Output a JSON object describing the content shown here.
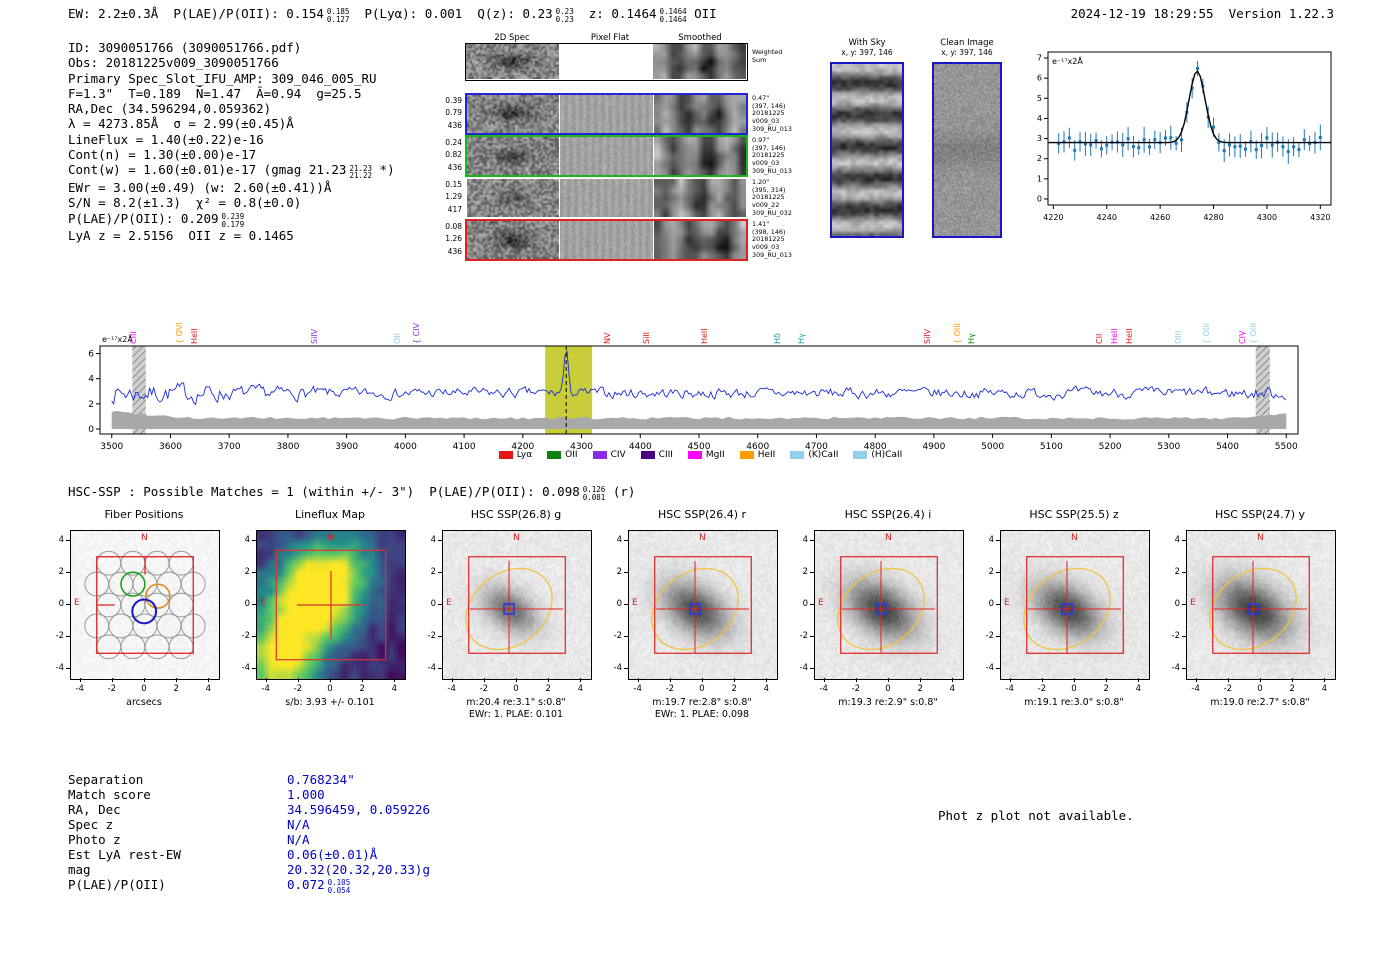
{
  "meta": {
    "timestamp": "2024-12-19 18:29:55",
    "version": "Version 1.22.3"
  },
  "header_parts": [
    {
      "t": "EW: 2.2±0.3Å  P(LAE)/P(OII): 0.154"
    },
    {
      "sup": "0.185",
      "sub": "0.127"
    },
    {
      "t": "  P(Lyα): 0.001  Q(z): 0.23"
    },
    {
      "sup": "0.23",
      "sub": "0.23"
    },
    {
      "t": "  z: 0.1464"
    },
    {
      "sup": "0.1464",
      "sub": "0.1464"
    },
    {
      "t": " OII"
    }
  ],
  "info_lines": [
    {
      "t": "ID: 3090051766 (3090051766.pdf)"
    },
    {
      "t": "Obs: 20181225v009_3090051766"
    },
    {
      "t": "Primary Spec_Slot_IFU_AMP: 309_046_005_RU"
    },
    {
      "t": "F=1.3\"  T=0.189  N̄=1.47  Ā=0.94  g=25.5"
    },
    {
      "t": "RA,Dec (34.596294,0.059362)"
    },
    {
      "t": "λ = 4273.85Å  σ = 2.99(±0.45)Å"
    },
    {
      "t": "LineFlux = 1.40(±0.22)e-16"
    },
    {
      "t": "Cont(n) = 1.30(±0.00)e-17"
    },
    {
      "pre": "Cont(w) = 1.60(±0.01)e-17 (gmag 21.23",
      "sup": "21.23",
      "sub": "21.22",
      "post": " *)"
    },
    {
      "t": "EWr = 3.00(±0.49) (w: 2.60(±0.41))Å"
    },
    {
      "t": "S/N = 8.2(±1.3)  χ² = 0.8(±0.0)"
    },
    {
      "pre": "P(LAE)/P(OII): 0.209",
      "sup": "0.239",
      "sub": "0.179"
    },
    {
      "t": "LyA z = 2.5156  OII z = 0.1465"
    }
  ],
  "spec2d": {
    "col_titles": [
      "2D Spec",
      "Pixel Flat",
      "Smoothed"
    ],
    "weighted_label": [
      "Weighted",
      "Sum"
    ],
    "rows": [
      {
        "left": [
          "0.39",
          "0.79",
          "436"
        ],
        "right": [
          "0.47\"",
          "(397, 146)",
          "20181225",
          "v009_03",
          "309_RU_013"
        ],
        "border": "#2424d8"
      },
      {
        "left": [
          "0.24",
          "0.82",
          "436"
        ],
        "right": [
          "0.97\"",
          "(397, 146)",
          "20181225",
          "v009_03",
          "309_RU_013"
        ],
        "border": "#18b818"
      },
      {
        "left": [
          "0.15",
          "1.29",
          "417"
        ],
        "right": [
          "1.20\"",
          "(395, 314)",
          "20181225",
          "v009_22",
          "309_RU_032"
        ],
        "border": "none"
      },
      {
        "left": [
          "0.08",
          "1.26",
          "436"
        ],
        "right": [
          "1.41\"",
          "(398, 146)",
          "20181225",
          "v009_03",
          "309_RU_013"
        ],
        "border": "#e02020"
      }
    ]
  },
  "sky_panels": [
    {
      "title": "With Sky",
      "subtitle": "x, y: 397, 146"
    },
    {
      "title": "Clean Image",
      "subtitle": "x, y: 397, 146"
    }
  ],
  "chart_data": [
    {
      "id": "emission-line-fit-zoom",
      "type": "scatter",
      "annotation": "e⁻¹⁷x2Å",
      "x_range": [
        4218,
        4324
      ],
      "y_range": [
        -0.3,
        7.3
      ],
      "x_ticks": [
        4220,
        4240,
        4260,
        4280,
        4300,
        4320
      ],
      "y_ticks": [
        0,
        1,
        2,
        3,
        4,
        5,
        6,
        7
      ],
      "fit": {
        "center": 4273.85,
        "sigma": 2.99,
        "continuum": 2.8,
        "peak": 6.35
      },
      "points": {
        "x_start": 4222,
        "x_end": 4320,
        "step": 2,
        "baseline": 2.75,
        "scatter": 0.4,
        "error_bar": 0.5
      },
      "colors": {
        "points": "#1f77b4",
        "fit": "#000000"
      },
      "seed": 11
    },
    {
      "id": "full-spectrum",
      "type": "line",
      "annotation": "e⁻¹⁷x2Å",
      "x_range": [
        3480,
        5520
      ],
      "y_range": [
        -0.4,
        6.6
      ],
      "x_ticks": [
        3500,
        3600,
        3700,
        3800,
        3900,
        4000,
        4100,
        4200,
        4300,
        4400,
        4500,
        4600,
        4700,
        4800,
        4900,
        5000,
        5100,
        5200,
        5300,
        5400,
        5500
      ],
      "y_ticks": [
        0,
        2,
        4,
        6
      ],
      "baseline": 2.85,
      "noise": 0.7,
      "emission_peak": {
        "wavelength": 4273.85,
        "flux": 5.9
      },
      "highlight_band": {
        "x0": 4238,
        "x1": 4318,
        "color": "#c3c825",
        "opacity": 0.9
      },
      "masked_bands": [
        [
          3535,
          3558
        ],
        [
          5448,
          5472
        ]
      ],
      "error_band": {
        "level": 0.75,
        "color": "#a8a8a8"
      },
      "dashed_line_x": 4273.85,
      "line_color": "#1c2cd8",
      "seed": 7,
      "line_labels": [
        {
          "name": "CIII",
          "wl": 3558,
          "color": "#ff00ff",
          "brace": false
        },
        {
          "name": "OVI",
          "wl": 3636,
          "color": "#ff9c00",
          "brace": true
        },
        {
          "name": "HeII",
          "wl": 3662,
          "color": "#e41616",
          "brace": false
        },
        {
          "name": "SiIV",
          "wl": 3866,
          "color": "#8a2be2",
          "brace": false
        },
        {
          "name": "OII",
          "wl": 4008,
          "color": "#8fd0ea",
          "brace": false
        },
        {
          "name": "CIV",
          "wl": 4040,
          "color": "#8a2be2",
          "brace": true
        },
        {
          "name": "NV",
          "wl": 4365,
          "color": "#e41616",
          "brace": false
        },
        {
          "name": "SiII",
          "wl": 4432,
          "color": "#e41616",
          "brace": false
        },
        {
          "name": "HeII",
          "wl": 4530,
          "color": "#e41616",
          "brace": false
        },
        {
          "name": "Hδ",
          "wl": 4655,
          "color": "#18a0a0",
          "brace": false
        },
        {
          "name": "Hγ",
          "wl": 4695,
          "color": "#18a0a0",
          "brace": false
        },
        {
          "name": "SiIV",
          "wl": 4910,
          "color": "#e41616",
          "brace": false
        },
        {
          "name": "OIII",
          "wl": 4962,
          "color": "#ff9c00",
          "brace": true
        },
        {
          "name": "Hγ",
          "wl": 4985,
          "color": "#108010",
          "brace": false
        },
        {
          "name": "CII",
          "wl": 5203,
          "color": "#e41616",
          "brace": false
        },
        {
          "name": "HeII",
          "wl": 5228,
          "color": "#ff00ff",
          "brace": false
        },
        {
          "name": "HeII",
          "wl": 5255,
          "color": "#e41616",
          "brace": false
        },
        {
          "name": "OIII",
          "wl": 5338,
          "color": "#8fd0ea",
          "brace": false
        },
        {
          "name": "OIII",
          "wl": 5385,
          "color": "#8fd0ea",
          "brace": true
        },
        {
          "name": "CIV",
          "wl": 5446,
          "color": "#ff00ff",
          "brace": false
        },
        {
          "name": "OIII",
          "wl": 5465,
          "color": "#8fd0ea",
          "brace": true
        }
      ],
      "legend": [
        {
          "label": "Lyα",
          "color": "#e41616"
        },
        {
          "label": "OII",
          "color": "#108010"
        },
        {
          "label": "CIV",
          "color": "#8a2be2"
        },
        {
          "label": "CIII",
          "color": "#4b0082"
        },
        {
          "label": "MgII",
          "color": "#ff00ff"
        },
        {
          "label": "HeII",
          "color": "#ff9c00"
        },
        {
          "label": "(K)CaII",
          "color": "#8fd0ea"
        },
        {
          "label": "(H)CaII",
          "color": "#8fd0ea"
        }
      ]
    }
  ],
  "hsc_header_parts": [
    {
      "t": "HSC-SSP : Possible Matches = 1 (within +/- 3\")  P(LAE)/P(OII): 0.098"
    },
    {
      "sup": "0.126",
      "sub": "0.081"
    },
    {
      "t": " (r)"
    }
  ],
  "cutouts": {
    "axis_ticks": [
      -4,
      -2,
      0,
      2,
      4
    ],
    "axis_range": [
      -4.6,
      4.6
    ],
    "compass": {
      "n": "N",
      "e": "E"
    },
    "panels": [
      {
        "title": "Fiber Positions",
        "kind": "fibers",
        "caption1": "arcsecs",
        "caption2": ""
      },
      {
        "title": "Lineflux Map",
        "kind": "heatmap",
        "caption1": "s/b: 3.93 +/- 0.101",
        "caption2": ""
      },
      {
        "title": "HSC SSP(26.8) g",
        "kind": "image",
        "caption1": "m:20.4 re:3.1\" s:0.8\"",
        "caption2": "EWr: 1. PLAE: 0.101"
      },
      {
        "title": "HSC SSP(26.4) r",
        "kind": "image",
        "caption1": "m:19.7 re:2.8\" s:0.8\"",
        "caption2": "EWr: 1. PLAE: 0.098"
      },
      {
        "title": "HSC SSP(26.4) i",
        "kind": "image",
        "caption1": "m:19.3 re:2.9\" s:0.8\"",
        "caption2": ""
      },
      {
        "title": "HSC SSP(25.5) z",
        "kind": "image",
        "caption1": "m:19.1 re:3.0\" s:0.8\"",
        "caption2": ""
      },
      {
        "title": "HSC SSP(24.7) y",
        "kind": "image",
        "caption1": "m:19.0 re:2.7\" s:0.8\"",
        "caption2": ""
      }
    ]
  },
  "match_table": {
    "rows": [
      {
        "label": "Separation",
        "value": "0.768234\""
      },
      {
        "label": "Match score",
        "value": "1.000"
      },
      {
        "label": "RA, Dec",
        "value": "34.596459, 0.059226"
      },
      {
        "label": "Spec z",
        "value": "N/A"
      },
      {
        "label": "Photo z",
        "value": "N/A"
      },
      {
        "label": "Est LyA rest-EW",
        "value": "0.06(±0.01)Å"
      },
      {
        "label": "mag",
        "value": "20.32(20.32,20.33)g"
      },
      {
        "label": "P(LAE)/P(OII)",
        "value": "0.072",
        "sup": "0.105",
        "sub": "0.054"
      }
    ]
  },
  "photz_note": "Phot z plot not available."
}
